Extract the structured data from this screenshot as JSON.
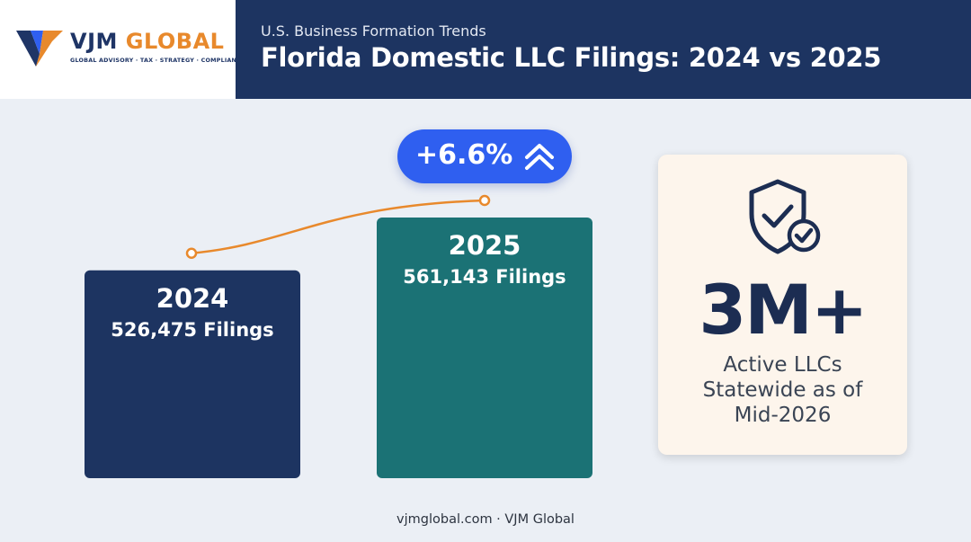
{
  "header": {
    "logo_name_primary": "VJM",
    "logo_name_accent": "GLOBAL",
    "logo_tagline": "GLOBAL ADVISORY · TAX · STRATEGY · COMPLIANCE",
    "eyebrow": "U.S. Business Formation Trends",
    "title": "Florida Domestic LLC Filings: 2024 vs 2025"
  },
  "chart_data": {
    "type": "bar",
    "categories": [
      "2024",
      "2025"
    ],
    "values": [
      526475,
      561143
    ],
    "value_labels": [
      "526,475 Filings",
      "561,143 Filings"
    ],
    "bar_colors": [
      "#1d3461",
      "#1b7275"
    ],
    "trend_line_color": "#e8892c",
    "change_label": "+6.6%",
    "change_icon": "double-chevron-up-icon",
    "grid": false,
    "legend": "none"
  },
  "stat_card": {
    "icon": "shield-check-icon",
    "value": "3M+",
    "caption_lines": [
      "Active LLCs",
      "Statewide as of",
      "Mid-2026"
    ]
  },
  "footer": {
    "text": "vjmglobal.com · VJM Global"
  },
  "colors": {
    "navy": "#1d3461",
    "teal": "#1b7275",
    "orange": "#e8892c",
    "blue_pill": "#2f5ff0",
    "card_bg": "#fdf5ec",
    "page_bg": "#ebeff5"
  }
}
